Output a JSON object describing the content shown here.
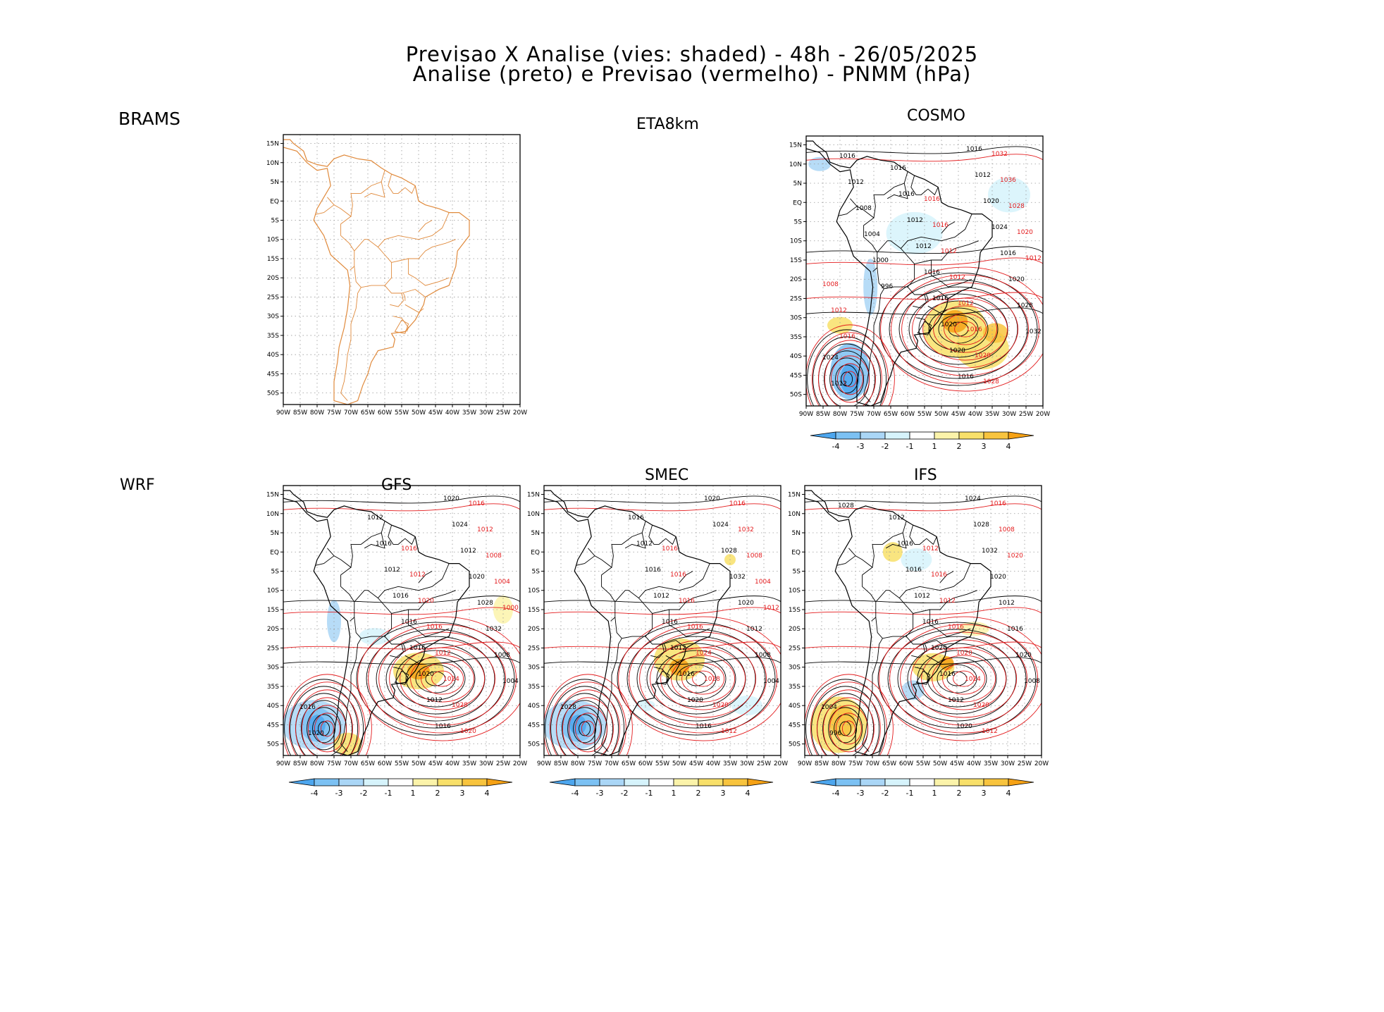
{
  "header": {
    "line1": "Previsao X Analise (vies: shaded) - 48h - 26/05/2025",
    "line2": "Analise (preto) e Previsao (vermelho) - PNMM (hPa)"
  },
  "panels": {
    "brams": {
      "label": "BRAMS"
    },
    "eta": {
      "label": "ETA8km"
    },
    "cosmo": {
      "label": "COSMO",
      "contours_black": [
        "1016",
        "1016",
        "1012",
        "1012",
        "1016",
        "1016",
        "1020",
        "1020",
        "1016",
        "1016",
        "1012",
        "1020",
        "1024",
        "1016",
        "1020",
        "1028",
        "1032",
        "1024",
        "1012",
        "1016",
        "1012",
        "1008",
        "1004",
        "1000",
        "996"
      ],
      "contours_red": [
        "1016",
        "1016",
        "1012",
        "1012",
        "1012",
        "1016",
        "1020",
        "1028",
        "1032",
        "1036",
        "1028",
        "1020",
        "1012",
        "1008",
        "1012",
        "1016"
      ]
    },
    "wrf": {
      "label": "WRF"
    },
    "gfs": {
      "label": "GFS",
      "contours_black": [
        "1012",
        "1016",
        "1012",
        "1016",
        "1016",
        "1016",
        "1020",
        "1012",
        "1016",
        "1020",
        "1024",
        "1012",
        "1020",
        "1028",
        "1032",
        "1008",
        "1004",
        "1016",
        "1020"
      ],
      "contours_red": [
        "1016",
        "1012",
        "1020",
        "1016",
        "1012",
        "1024",
        "1028",
        "1020",
        "1016",
        "1012",
        "1008",
        "1004",
        "1000"
      ]
    },
    "smec": {
      "label": "SMEC",
      "contours_black": [
        "1016",
        "1012",
        "1016",
        "1012",
        "1016",
        "1012",
        "1016",
        "1020",
        "1016",
        "1020",
        "1024",
        "1028",
        "1032",
        "1020",
        "1012",
        "1008",
        "1004",
        "1028"
      ],
      "contours_red": [
        "1016",
        "1016",
        "1016",
        "1016",
        "1024",
        "1028",
        "1020",
        "1012",
        "1016",
        "1032",
        "1008",
        "1004",
        "1012"
      ]
    },
    "ifs": {
      "label": "IFS",
      "contours_black": [
        "1012",
        "1016",
        "1016",
        "1012",
        "1016",
        "1020",
        "1016",
        "1012",
        "1020",
        "1024",
        "1028",
        "1032",
        "1020",
        "1012",
        "1016",
        "1020",
        "1008",
        "1004",
        "996",
        "1028"
      ],
      "contours_red": [
        "1012",
        "1016",
        "1012",
        "1016",
        "1020",
        "1024",
        "1020",
        "1012",
        "1016",
        "1008",
        "1020"
      ]
    }
  },
  "axes": {
    "lat_labels": [
      "15N",
      "10N",
      "5N",
      "EQ",
      "5S",
      "10S",
      "15S",
      "20S",
      "25S",
      "30S",
      "35S",
      "40S",
      "45S",
      "50S"
    ],
    "lon_labels": [
      "90W",
      "85W",
      "80W",
      "75W",
      "70W",
      "65W",
      "60W",
      "55W",
      "50W",
      "45W",
      "40W",
      "35W",
      "30W",
      "25W",
      "20W"
    ]
  },
  "colorbar": {
    "ticks": [
      "-4",
      "-3",
      "-2",
      "-1",
      "1",
      "2",
      "3",
      "4"
    ],
    "colors": [
      "#4da6ee",
      "#7cc1f3",
      "#aad6f6",
      "#d6f3fb",
      "#ffffff",
      "#fbf3aa",
      "#f8e06a",
      "#f8c43e",
      "#f6a215"
    ]
  },
  "colors": {
    "analysis": "#000000",
    "forecast": "#e31a1c",
    "coast_brams": "#e08a3c"
  }
}
